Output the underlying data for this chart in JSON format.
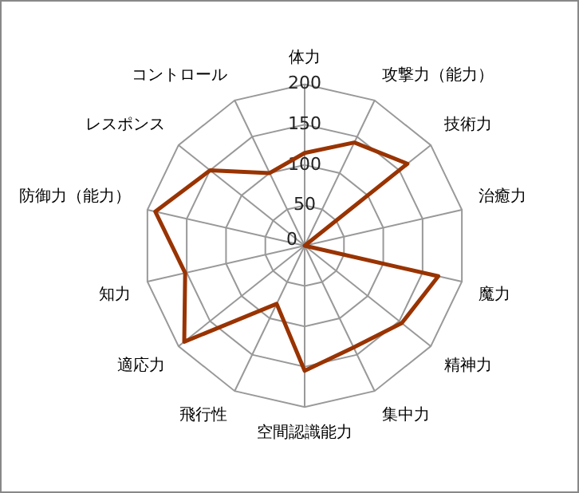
{
  "chart_data": {
    "type": "radar",
    "categories": [
      "体力",
      "攻撃力（能力）",
      "技術力",
      "治癒力",
      "魔力",
      "精神力",
      "集中力",
      "空間認識能力",
      "飛行性",
      "適応力",
      "知力",
      "防御力（能力）",
      "レスポンス",
      "コントロール"
    ],
    "series": [
      {
        "color": "#993300",
        "values": [
          115,
          142,
          163,
          0,
          170,
          154,
          140,
          155,
          80,
          191,
          152,
          190,
          150,
          100
        ]
      }
    ],
    "ylim": [
      0,
      200
    ],
    "yticks": [
      0,
      50,
      100,
      150,
      200
    ],
    "grid": true,
    "legend": false,
    "marker": "none"
  }
}
